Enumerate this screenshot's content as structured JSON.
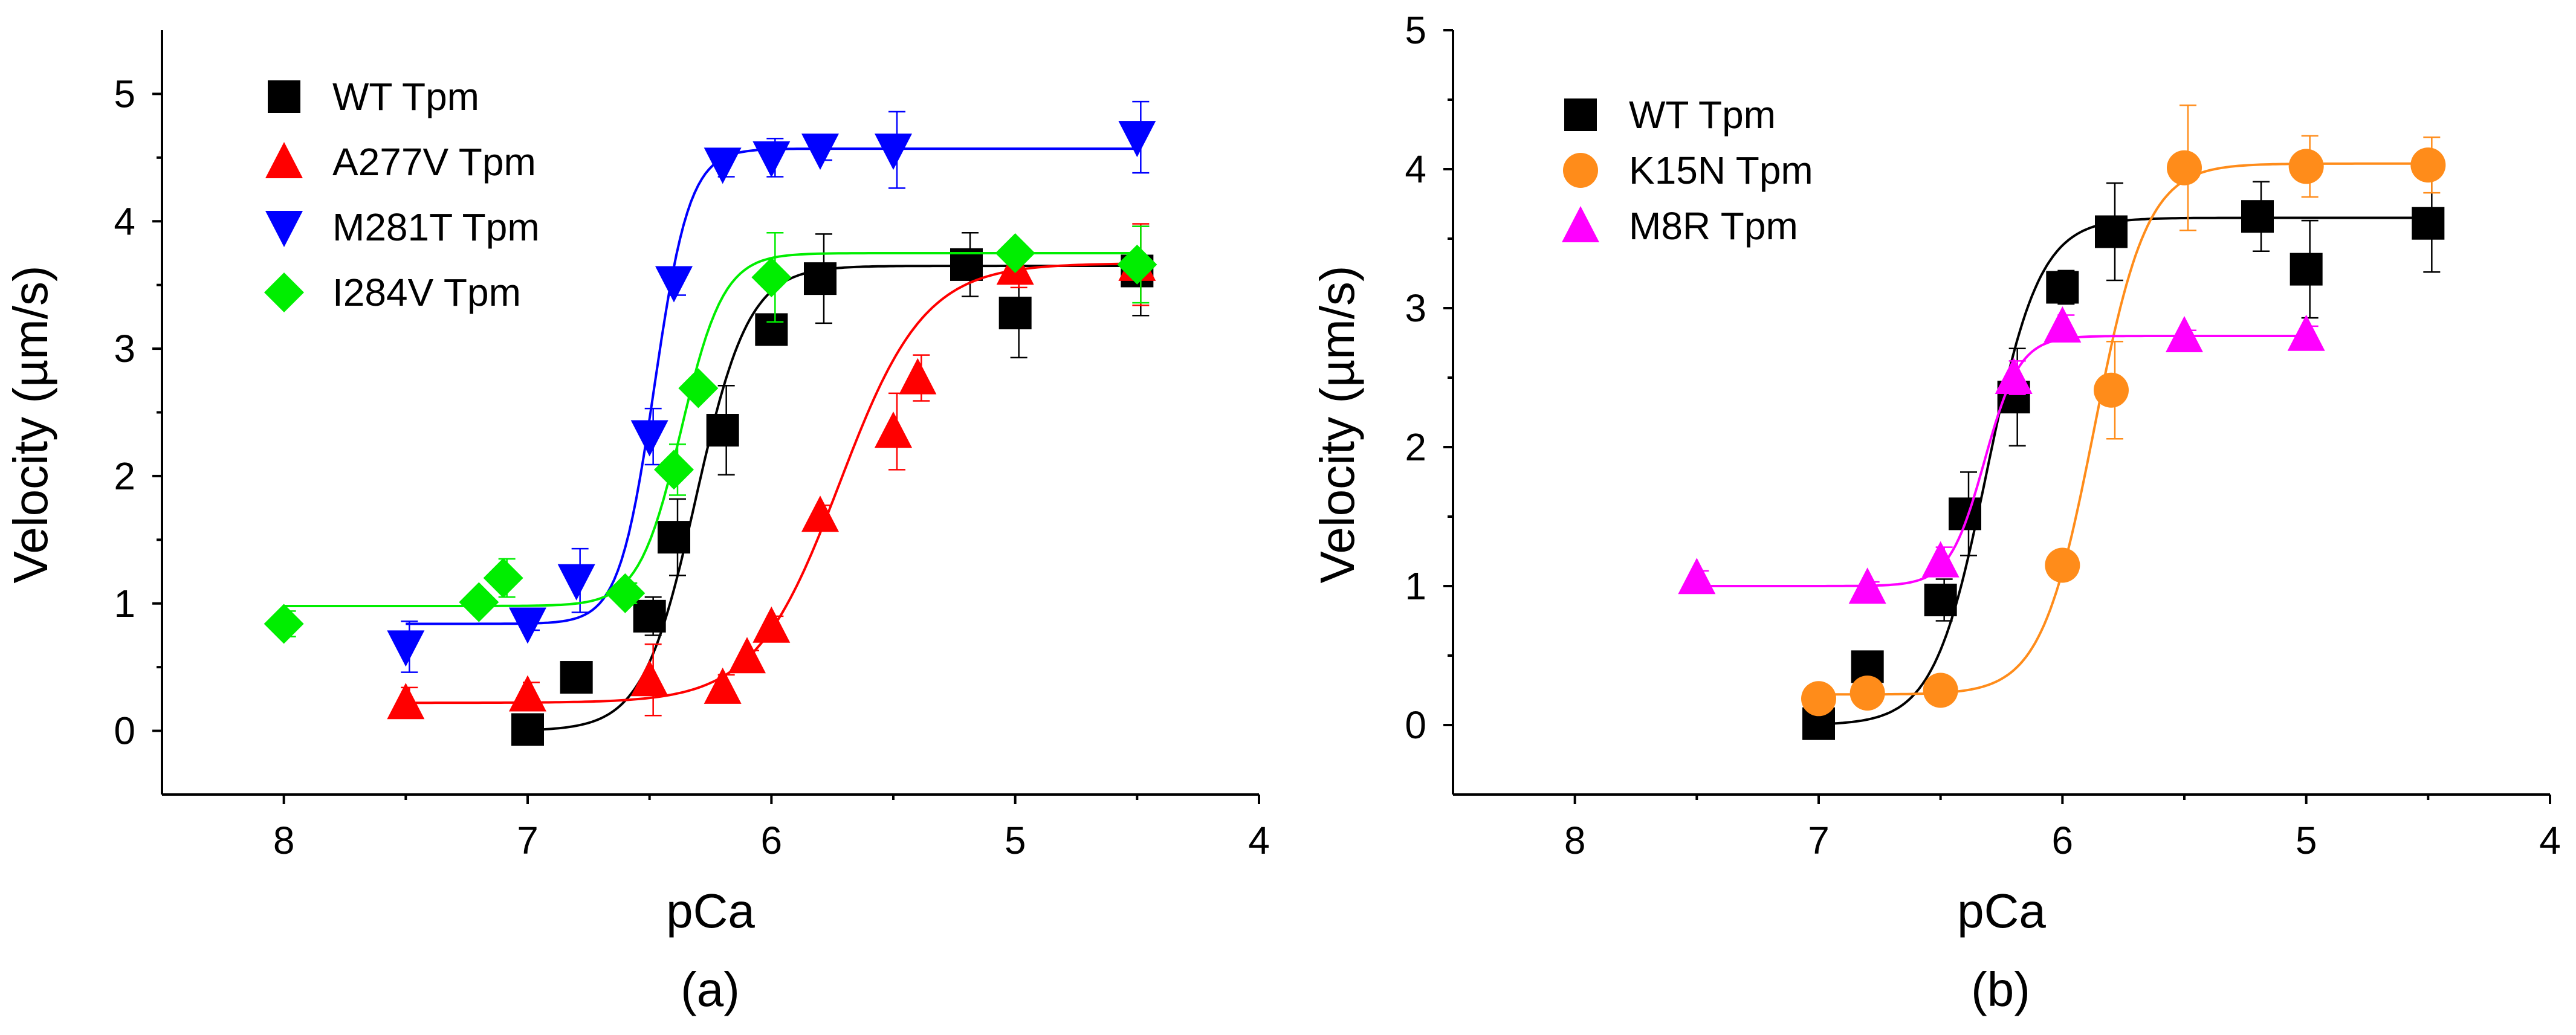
{
  "chart_data": [
    {
      "type": "scatter",
      "panel_label": "(a)",
      "xlabel": "pCa",
      "ylabel": "Velocity (µm/s)",
      "xlim": [
        8.5,
        4
      ],
      "ylim": [
        -0.5,
        5.5
      ],
      "x_ticks": [
        "8",
        "7",
        "6",
        "5",
        "4"
      ],
      "y_ticks": [
        "0",
        "1",
        "2",
        "3",
        "4",
        "5"
      ],
      "legend_position": "top-left",
      "series": [
        {
          "name": "WT Tpm",
          "color": "#000000",
          "marker": "square",
          "points": [
            [
              7.0,
              0.01,
              0
            ],
            [
              6.8,
              0.42,
              0
            ],
            [
              6.5,
              0.9,
              0.15
            ],
            [
              6.4,
              1.52,
              0.3
            ],
            [
              6.2,
              2.36,
              0.35
            ],
            [
              6.0,
              3.15,
              0.12
            ],
            [
              5.8,
              3.55,
              0.35
            ],
            [
              5.2,
              3.66,
              0.25
            ],
            [
              5.0,
              3.28,
              0.35
            ],
            [
              4.5,
              3.61,
              0.35
            ]
          ],
          "fit": {
            "bottom": 0.0,
            "top": 3.65,
            "pca50": 6.31,
            "hill": 4.0
          }
        },
        {
          "name": "A277V Tpm",
          "color": "#ff0000",
          "marker": "triangle-up",
          "points": [
            [
              7.5,
              0.22,
              0.12
            ],
            [
              7.0,
              0.28,
              0.1
            ],
            [
              6.5,
              0.4,
              0.28
            ],
            [
              6.2,
              0.34,
              0.1
            ],
            [
              6.1,
              0.58,
              0.05
            ],
            [
              6.0,
              0.82,
              0.08
            ],
            [
              5.8,
              1.69,
              0.08
            ],
            [
              5.5,
              2.35,
              0.3
            ],
            [
              5.4,
              2.77,
              0.18
            ],
            [
              5.0,
              3.63,
              0.15
            ],
            [
              4.5,
              3.66,
              0.32
            ]
          ],
          "fit": {
            "bottom": 0.22,
            "top": 3.67,
            "pca50": 5.72,
            "hill": 2.5
          }
        },
        {
          "name": "M281T Tpm",
          "color": "#0000ff",
          "marker": "triangle-down",
          "points": [
            [
              7.5,
              0.66,
              0.2
            ],
            [
              7.0,
              0.84,
              0.05
            ],
            [
              6.8,
              1.18,
              0.25
            ],
            [
              6.5,
              2.31,
              0.22
            ],
            [
              6.4,
              3.52,
              0.1
            ],
            [
              6.2,
              4.45,
              0.1
            ],
            [
              6.0,
              4.5,
              0.15
            ],
            [
              5.8,
              4.56,
              0.08
            ],
            [
              5.5,
              4.56,
              0.3
            ],
            [
              4.5,
              4.66,
              0.28
            ]
          ],
          "fit": {
            "bottom": 0.84,
            "top": 4.57,
            "pca50": 6.48,
            "hill": 6.0
          }
        },
        {
          "name": "I284V Tpm",
          "color": "#00ee00",
          "marker": "diamond",
          "points": [
            [
              8.0,
              0.84,
              0.1
            ],
            [
              7.2,
              1.01,
              0.05
            ],
            [
              7.1,
              1.2,
              0.15
            ],
            [
              6.6,
              1.08,
              0.08
            ],
            [
              6.4,
              2.05,
              0.2
            ],
            [
              6.3,
              2.69,
              0.05
            ],
            [
              6.0,
              3.56,
              0.35
            ],
            [
              5.0,
              3.75,
              0.05
            ],
            [
              4.5,
              3.66,
              0.3
            ]
          ],
          "fit": {
            "bottom": 0.98,
            "top": 3.75,
            "pca50": 6.37,
            "hill": 5.0
          }
        }
      ]
    },
    {
      "type": "scatter",
      "panel_label": "(b)",
      "xlabel": "pCa",
      "ylabel": "Velocity (µm/s)",
      "xlim": [
        8.5,
        4
      ],
      "ylim": [
        -0.5,
        5
      ],
      "x_ticks": [
        "8",
        "7",
        "6",
        "5",
        "4"
      ],
      "y_ticks": [
        "0",
        "1",
        "2",
        "3",
        "4",
        "5"
      ],
      "legend_position": "top-left",
      "series": [
        {
          "name": "WT Tpm",
          "color": "#000000",
          "marker": "square",
          "points": [
            [
              7.0,
              0.01,
              0
            ],
            [
              6.8,
              0.42,
              0
            ],
            [
              6.5,
              0.9,
              0.15
            ],
            [
              6.4,
              1.52,
              0.3
            ],
            [
              6.2,
              2.36,
              0.35
            ],
            [
              6.0,
              3.15,
              0.12
            ],
            [
              5.8,
              3.55,
              0.35
            ],
            [
              5.2,
              3.66,
              0.25
            ],
            [
              5.0,
              3.28,
              0.35
            ],
            [
              4.5,
              3.61,
              0.35
            ]
          ],
          "fit": {
            "bottom": 0.0,
            "top": 3.65,
            "pca50": 6.31,
            "hill": 4.0
          }
        },
        {
          "name": "K15N Tpm",
          "color": "#ff8c1a",
          "marker": "circle",
          "points": [
            [
              7.0,
              0.19,
              0
            ],
            [
              6.8,
              0.23,
              0
            ],
            [
              6.5,
              0.25,
              0
            ],
            [
              6.0,
              1.15,
              0
            ],
            [
              5.8,
              2.41,
              0.35
            ],
            [
              5.5,
              4.01,
              0.45
            ],
            [
              5.0,
              4.02,
              0.22
            ],
            [
              4.5,
              4.03,
              0.2
            ]
          ],
          "fit": {
            "bottom": 0.22,
            "top": 4.04,
            "pca50": 5.87,
            "hill": 4.0
          }
        },
        {
          "name": "M8R Tpm",
          "color": "#ff00ff",
          "marker": "triangle-up",
          "points": [
            [
              7.5,
              1.06,
              0.05
            ],
            [
              6.8,
              0.99,
              0.04
            ],
            [
              6.5,
              1.18,
              0.1
            ],
            [
              6.2,
              2.5,
              0.12
            ],
            [
              6.0,
              2.87,
              0.08
            ],
            [
              5.5,
              2.8,
              0.04
            ],
            [
              5.0,
              2.81,
              0.06
            ]
          ],
          "fit": {
            "bottom": 1.0,
            "top": 2.8,
            "pca50": 6.32,
            "hill": 6.0
          }
        }
      ]
    }
  ]
}
